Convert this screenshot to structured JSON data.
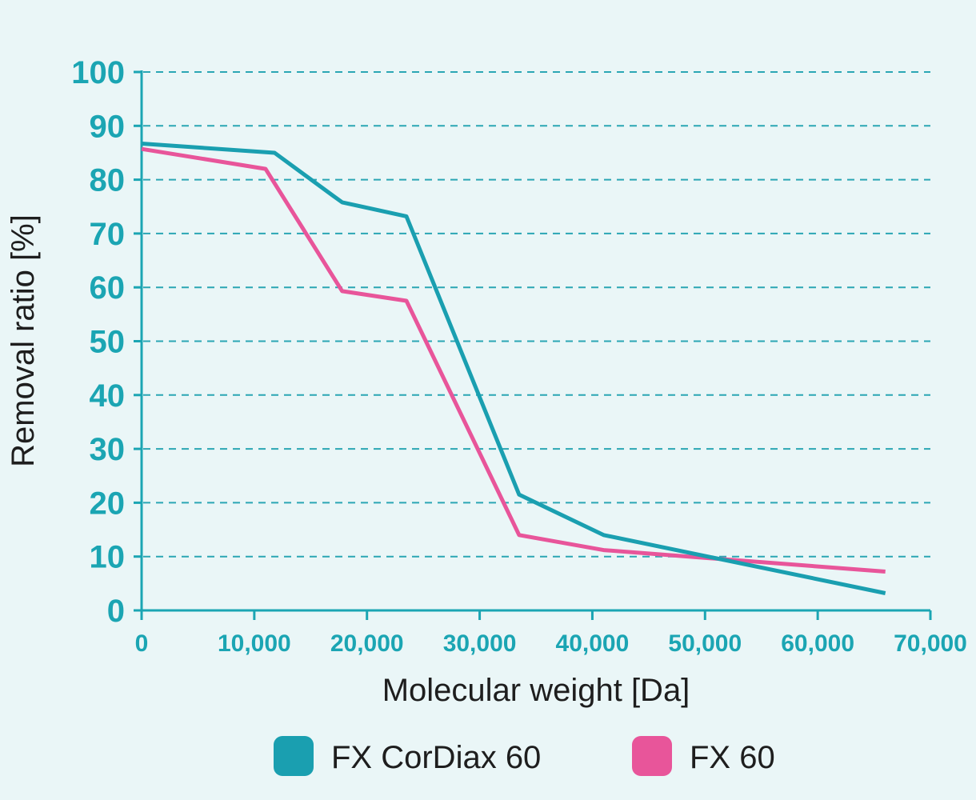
{
  "chart_data": {
    "type": "line",
    "title": "",
    "xlabel": "Molecular weight [Da]",
    "ylabel": "Removal ratio [%]",
    "xlim": [
      0,
      70000
    ],
    "ylim": [
      0,
      100
    ],
    "xticks": [
      0,
      10000,
      20000,
      30000,
      40000,
      50000,
      60000,
      70000
    ],
    "xtick_labels": [
      "0",
      "10,000",
      "20,000",
      "30,000",
      "40,000",
      "50,000",
      "60,000",
      "70,000"
    ],
    "yticks": [
      0,
      10,
      20,
      30,
      40,
      50,
      60,
      70,
      80,
      90,
      100
    ],
    "ytick_labels": [
      "0",
      "10",
      "20",
      "30",
      "40",
      "50",
      "60",
      "70",
      "80",
      "90",
      "100"
    ],
    "grid": "horizontal dashed",
    "legend_position": "bottom",
    "series": [
      {
        "name": "FX CorDiax 60",
        "color": "#1a9fb0",
        "x": [
          0,
          11800,
          17000,
          17800,
          23500,
          33500,
          41000,
          66000
        ],
        "y": [
          86.7,
          85,
          77,
          75.8,
          73.2,
          21.5,
          14,
          3.2
        ]
      },
      {
        "name": "FX 60",
        "color": "#e8559a",
        "x": [
          0,
          11000,
          17800,
          23500,
          33500,
          41000,
          66000
        ],
        "y": [
          85.7,
          82,
          59.3,
          57.5,
          14,
          11.2,
          7.2
        ]
      }
    ]
  },
  "colors": {
    "background": "#eaf6f7",
    "axis": "#1ba5b3",
    "grid": "#2ba6b4"
  }
}
